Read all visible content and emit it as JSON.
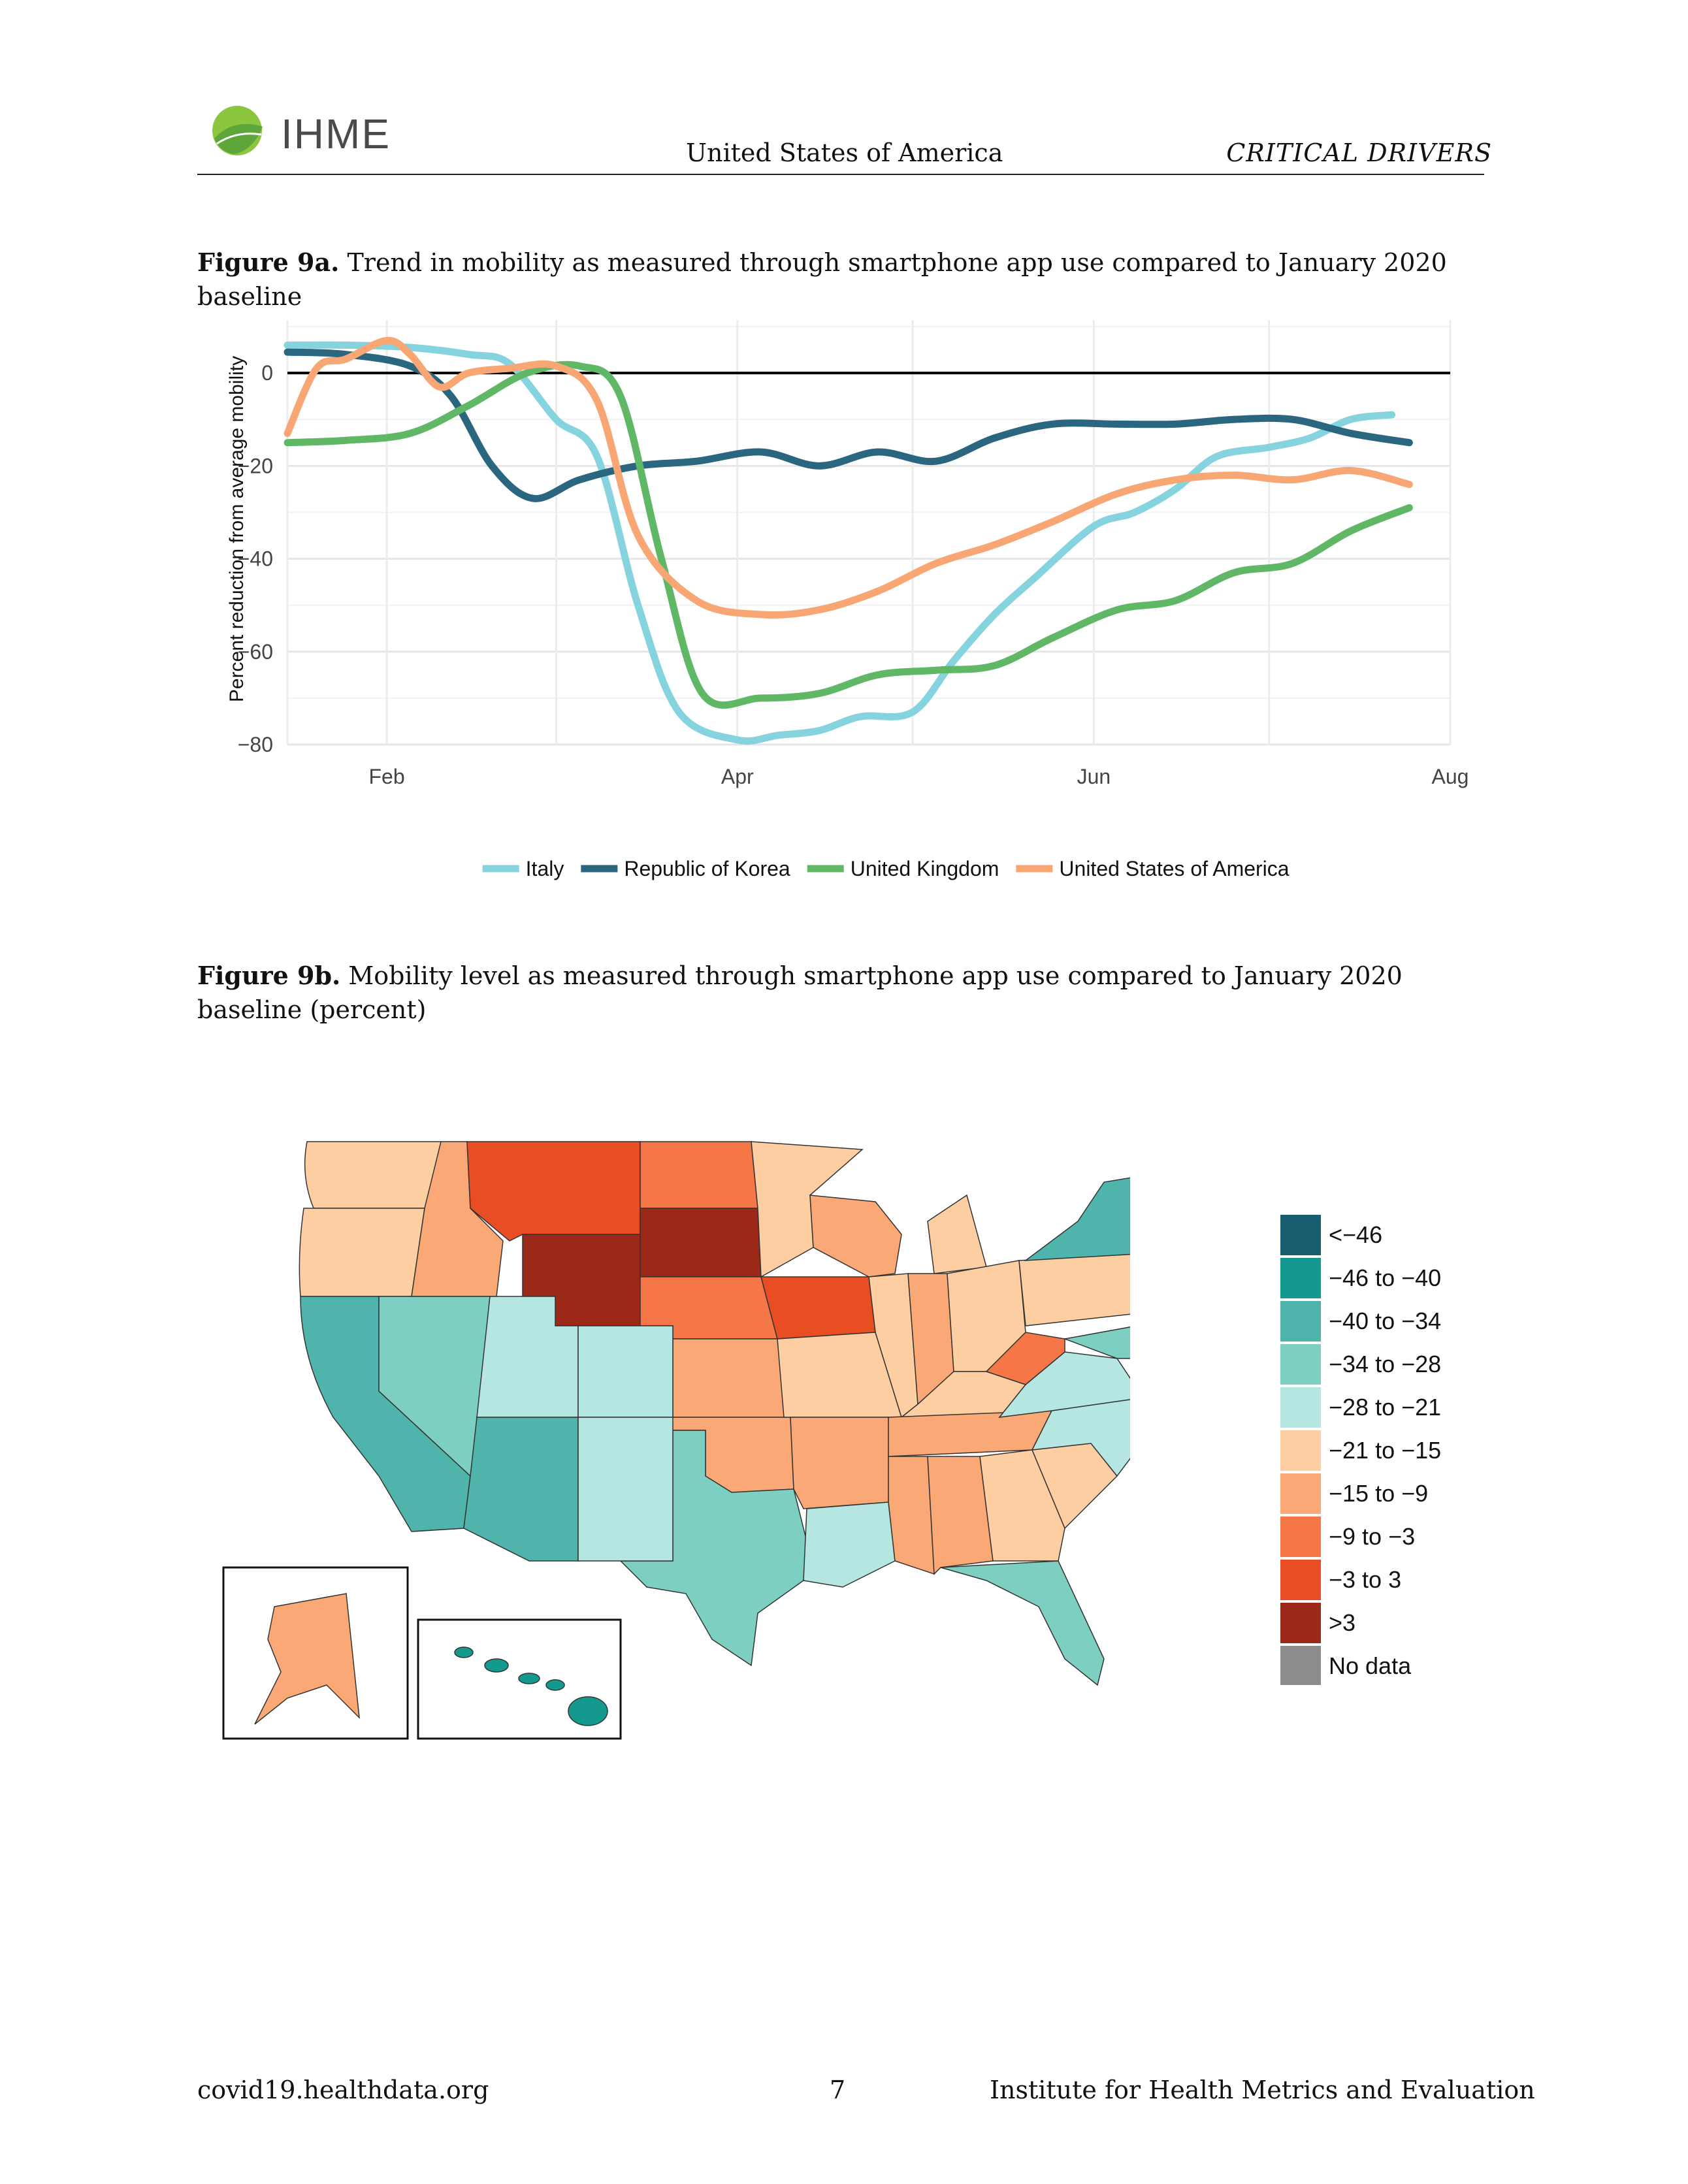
{
  "header": {
    "logo_text": "IHME",
    "country": "United States of America",
    "section": "CRITICAL DRIVERS"
  },
  "figure_a": {
    "label": "Figure 9a.",
    "caption": "Trend in mobility as measured through smartphone app use compared to January 2020 baseline"
  },
  "figure_b": {
    "label": "Figure 9b.",
    "caption": "Mobility level as measured through smartphone app use compared to January 2020 baseline (percent)"
  },
  "chart_data": [
    {
      "type": "line",
      "ylabel": "Percent reduction from average mobility",
      "xlabel": "",
      "x_ticks": [
        "Feb",
        "Apr",
        "Jun",
        "Aug"
      ],
      "y_ticks": [
        0,
        -20,
        -40,
        -60,
        -80
      ],
      "ylim": [
        -80,
        10
      ],
      "xlim": [
        "2020-01-15",
        "2020-08-01"
      ],
      "grid": true,
      "legend_position": "bottom",
      "series": [
        {
          "name": "Italy",
          "color": "#85d3df",
          "x": [
            "2020-01-15",
            "2020-01-25",
            "2020-02-05",
            "2020-02-15",
            "2020-02-22",
            "2020-03-01",
            "2020-03-08",
            "2020-03-15",
            "2020-03-22",
            "2020-04-01",
            "2020-04-08",
            "2020-04-15",
            "2020-04-22",
            "2020-05-01",
            "2020-05-08",
            "2020-05-15",
            "2020-05-22",
            "2020-06-01",
            "2020-06-08",
            "2020-06-15",
            "2020-06-22",
            "2020-07-01",
            "2020-07-08",
            "2020-07-15",
            "2020-07-22"
          ],
          "values": [
            6,
            6,
            5.5,
            4,
            2,
            -10,
            -18,
            -50,
            -73,
            -79,
            -78,
            -77,
            -74,
            -73,
            -62,
            -52,
            -44,
            -33,
            -30,
            -25,
            -18,
            -16,
            -14,
            -10,
            -9
          ]
        },
        {
          "name": "Republic of Korea",
          "color": "#2a6680",
          "x": [
            "2020-01-15",
            "2020-01-25",
            "2020-02-05",
            "2020-02-12",
            "2020-02-19",
            "2020-02-26",
            "2020-03-05",
            "2020-03-15",
            "2020-03-25",
            "2020-04-05",
            "2020-04-15",
            "2020-04-25",
            "2020-05-05",
            "2020-05-15",
            "2020-05-25",
            "2020-06-05",
            "2020-06-15",
            "2020-06-25",
            "2020-07-05",
            "2020-07-15",
            "2020-07-25"
          ],
          "values": [
            4.5,
            4,
            1.5,
            -5,
            -20,
            -27,
            -23,
            -20,
            -19,
            -17,
            -20,
            -17,
            -19,
            -14,
            -11,
            -11,
            -11,
            -10,
            -10,
            -13,
            -15
          ]
        },
        {
          "name": "United Kingdom",
          "color": "#60b867",
          "x": [
            "2020-01-15",
            "2020-01-25",
            "2020-02-05",
            "2020-02-15",
            "2020-02-25",
            "2020-03-05",
            "2020-03-12",
            "2020-03-19",
            "2020-03-26",
            "2020-04-05",
            "2020-04-15",
            "2020-04-25",
            "2020-05-05",
            "2020-05-15",
            "2020-05-25",
            "2020-06-05",
            "2020-06-15",
            "2020-06-25",
            "2020-07-05",
            "2020-07-15",
            "2020-07-25"
          ],
          "values": [
            -15,
            -14.5,
            -13,
            -7,
            0,
            1.5,
            -5,
            -40,
            -69,
            -70,
            -69,
            -65,
            -64,
            -63,
            -57,
            -51,
            -49,
            -43,
            -41,
            -34,
            -29
          ]
        },
        {
          "name": "United States of America",
          "color": "#f8a774",
          "x": [
            "2020-01-15",
            "2020-01-20",
            "2020-01-25",
            "2020-02-01",
            "2020-02-05",
            "2020-02-10",
            "2020-02-15",
            "2020-02-22",
            "2020-03-01",
            "2020-03-08",
            "2020-03-15",
            "2020-03-25",
            "2020-04-05",
            "2020-04-15",
            "2020-04-25",
            "2020-05-05",
            "2020-05-15",
            "2020-05-25",
            "2020-06-05",
            "2020-06-15",
            "2020-06-25",
            "2020-07-05",
            "2020-07-15",
            "2020-07-25"
          ],
          "values": [
            -13,
            1,
            3,
            7,
            4,
            -3,
            0,
            1,
            1.5,
            -6,
            -35,
            -49,
            -52,
            -51,
            -47,
            -41,
            -37,
            -32,
            -26,
            -23,
            -22,
            -23,
            -21,
            -24
          ]
        }
      ]
    },
    {
      "type": "choropleth",
      "legend_position": "right",
      "legend": [
        {
          "label": "<−46",
          "color": "#175e6e"
        },
        {
          "label": "−46 to −40",
          "color": "#14998f"
        },
        {
          "label": "−40 to −34",
          "color": "#4fb5ac"
        },
        {
          "label": "−34 to −28",
          "color": "#7dcfc2"
        },
        {
          "label": "−28 to −21",
          "color": "#b6e6e2"
        },
        {
          "label": "−21 to −15",
          "color": "#fdcea2"
        },
        {
          "label": "−15 to −9",
          "color": "#faa875"
        },
        {
          "label": "−9 to −3",
          "color": "#f57747"
        },
        {
          "label": "−3 to 3",
          "color": "#e84d24"
        },
        {
          "label": ">3",
          "color": "#9c2817"
        },
        {
          "label": "No data",
          "color": "#8c8c8c"
        }
      ]
    }
  ],
  "footer": {
    "website": "covid19.healthdata.org",
    "page": "7",
    "institute": "Institute for Health Metrics and Evaluation"
  }
}
